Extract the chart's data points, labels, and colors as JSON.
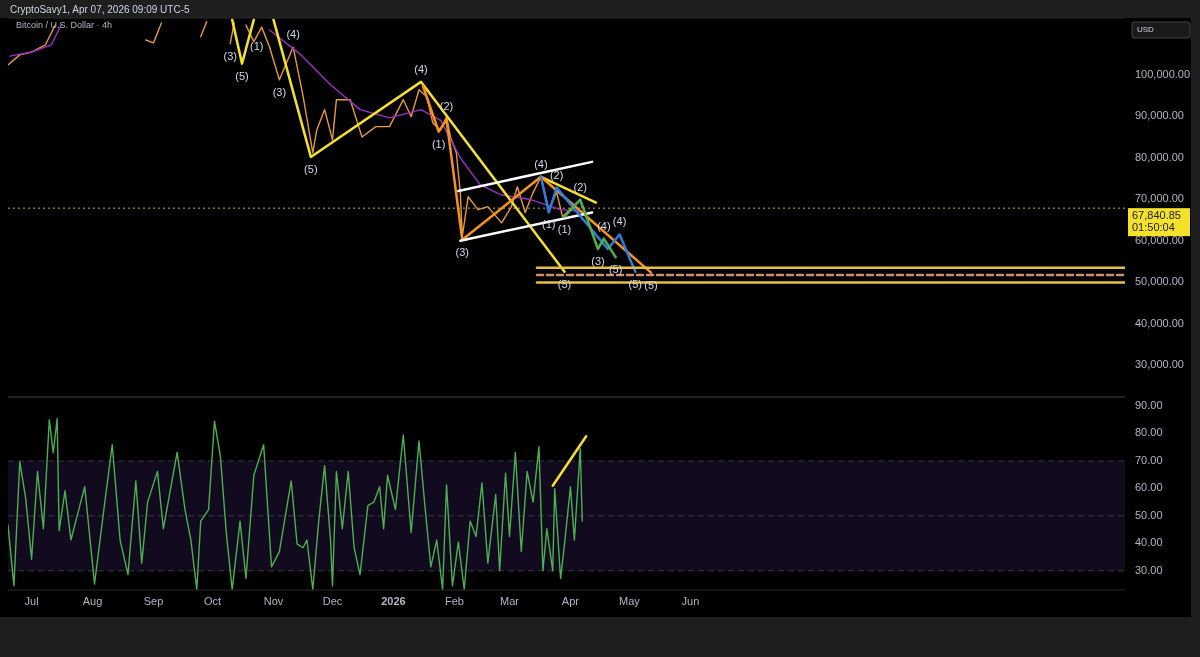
{
  "chart_data": [
    {
      "type": "line",
      "title": "Bitcoin / U.S. Dollar · 4h",
      "subtitle": "CryptoSavy1, Apr 07, 2026 09:09 UTC-5",
      "ylabel": "USD",
      "xlim": [
        "2025-06-19",
        "2027-01-08"
      ],
      "ylim": [
        22300,
        113700
      ],
      "tick_labels": "y",
      "yticks": [
        {
          "value": 30000,
          "label": "30,000.00"
        },
        {
          "value": 40000,
          "label": "40,000.00"
        },
        {
          "value": 50000,
          "label": "50,000.00"
        },
        {
          "value": 60000,
          "label": "60,000.00"
        },
        {
          "value": 70000,
          "label": "70,000.00"
        },
        {
          "value": 80000,
          "label": "80,000.00"
        },
        {
          "value": 90000,
          "label": "90,000.00"
        },
        {
          "value": 100000,
          "label": "100,000.00"
        }
      ],
      "ref_lines": [
        {
          "axis": "y",
          "value": 67840.85,
          "label": "67,840.85",
          "color": "#f5e02a",
          "line_style": "dotted"
        }
      ],
      "series": [
        {
          "color": "#e59a3a",
          "x": [
            "2025-06-19",
            "2025-06-25",
            "2025-07-01",
            "2025-07-08",
            "2025-07-13",
            "2025-07-20",
            "2025-08-28",
            "2025-09-01",
            "2025-09-05",
            "2025-09-12",
            "2025-09-25",
            "2025-09-28",
            "2025-10-03",
            "2025-10-10",
            "2025-10-12",
            "2025-10-15",
            "2025-10-18",
            "2025-10-22",
            "2025-10-26",
            "2025-10-30",
            "2025-11-04",
            "2025-11-11",
            "2025-11-16",
            "2025-11-21",
            "2025-11-23",
            "2025-11-27",
            "2025-12-01",
            "2025-12-03",
            "2025-12-10",
            "2025-12-16",
            "2025-12-23",
            "2025-12-30",
            "2026-01-06",
            "2026-01-10",
            "2026-01-14",
            "2026-01-18",
            "2026-01-21",
            "2026-01-25",
            "2026-01-28",
            "2026-01-30",
            "2026-02-02",
            "2026-02-04",
            "2026-02-05",
            "2026-02-08",
            "2026-02-13",
            "2026-02-18",
            "2026-02-25",
            "2026-03-02",
            "2026-03-05",
            "2026-03-09",
            "2026-03-13",
            "2026-03-17",
            "2026-03-21",
            "2026-03-25",
            "2026-03-28",
            "2026-04-02",
            "2026-04-06",
            "2026-04-07"
          ],
          "values": [
            102400,
            104800,
            105500,
            107200,
            112000,
            null,
            108400,
            107700,
            112500,
            null,
            109200,
            112800,
            null,
            107500,
            112500,
            null,
            112000,
            108000,
            111500,
            106700,
            98800,
            106700,
            95000,
            81200,
            86700,
            91600,
            84300,
            94000,
            94000,
            85000,
            87500,
            87500,
            94000,
            89900,
            96400,
            94700,
            88400,
            86700,
            89900,
            85000,
            81200,
            71600,
            61000,
            70600,
            67500,
            68200,
            64300,
            68200,
            73000,
            66800,
            71600,
            75400,
            67500,
            71600,
            65800,
            68200,
            69900,
            67840.85
          ]
        },
        {
          "color": "#9b30c8",
          "x": [
            "2025-06-20",
            "2025-07-01",
            "2025-07-11",
            "2025-07-16",
            "2025-07-20",
            "2025-10-30",
            "2025-11-15",
            "2025-11-30",
            "2025-12-15",
            "2025-12-30",
            "2026-01-15",
            "2026-01-25",
            "2026-02-04",
            "2026-02-14",
            "2026-02-25",
            "2026-03-11",
            "2026-03-27",
            "2026-04-07"
          ],
          "values": [
            104500,
            105500,
            107200,
            112000,
            null,
            110800,
            104800,
            97600,
            91600,
            89600,
            91600,
            89000,
            80000,
            73500,
            71000,
            70000,
            67500,
            67000
          ]
        },
        {
          "color": "#f5e02a",
          "x": [
            "2025-10-11",
            "2025-10-16",
            "2025-10-22",
            "2025-10-27",
            "2025-11-01",
            "2025-11-20",
            "2026-01-15",
            "2026-03-29"
          ],
          "values": [
            113300,
            102700,
            113300,
            null,
            113300,
            80200,
            98300,
            52500
          ]
        },
        {
          "color": "#f5e02a",
          "x": [
            "2026-03-17",
            "2026-04-14"
          ],
          "values": [
            75400,
            69200
          ]
        },
        {
          "color": "#f7931a",
          "x": [
            "2026-01-16",
            "2026-01-24",
            "2026-01-28",
            "2026-02-05",
            "2026-03-17",
            "2026-05-12"
          ],
          "values": [
            97300,
            86300,
            89200,
            60200,
            75400,
            52300
          ]
        },
        {
          "color": "#ffffff",
          "x": [
            "2026-02-03",
            "2026-04-12"
          ],
          "values": [
            72000,
            79000
          ]
        },
        {
          "color": "#ffffff",
          "x": [
            "2026-02-04",
            "2026-04-12"
          ],
          "values": [
            60000,
            66800
          ]
        },
        {
          "color": "#2f7de1",
          "x": [
            "2026-03-17",
            "2026-03-21",
            "2026-03-25",
            "2026-04-20",
            "2026-04-26",
            "2026-05-04"
          ],
          "values": [
            75400,
            66800,
            72800,
            58000,
            61500,
            52500
          ]
        },
        {
          "color": "#4caf50",
          "x": [
            "2026-03-29",
            "2026-04-06",
            "2026-04-15",
            "2026-04-18",
            "2026-04-24"
          ],
          "values": [
            65800,
            69900,
            58000,
            60500,
            56000
          ]
        },
        {
          "color": "#e8c040",
          "x": [
            "2026-03-15",
            "2027-01-08"
          ],
          "values": [
            53500,
            53500
          ]
        },
        {
          "color": "#e8c040",
          "x": [
            "2026-03-15",
            "2027-01-08"
          ],
          "values": [
            49900,
            49900
          ]
        },
        {
          "color": "#d09070",
          "line_style": "dashed",
          "x": [
            "2026-03-15",
            "2027-01-08"
          ],
          "values": [
            51700,
            51700
          ]
        }
      ],
      "annotations": [
        "01:50:04",
        {
          "text": "(3)",
          "x": "2025-10-10",
          "y": 107500
        },
        {
          "text": "(5)",
          "x": "2025-10-16",
          "y": 102700
        },
        {
          "text": "(4)",
          "x": "2025-11-11",
          "y": 106700
        },
        {
          "text": "(1)",
          "x": "2025-10-30",
          "y": 106700
        },
        {
          "text": "(3)",
          "x": "2025-11-04",
          "y": 98800
        },
        {
          "text": "(5)",
          "x": "2025-11-20",
          "y": 80200
        },
        {
          "text": "(4)",
          "x": "2026-01-15",
          "y": 98300
        },
        {
          "text": "(2)",
          "x": "2026-01-28",
          "y": 89200
        },
        {
          "text": "(1)",
          "x": "2026-01-24",
          "y": 86300
        },
        {
          "text": "(3)",
          "x": "2026-02-05",
          "y": 60200
        },
        {
          "text": "(4)",
          "x": "2026-03-17",
          "y": 75400
        },
        {
          "text": "(2)",
          "x": "2026-03-25",
          "y": 72800
        },
        {
          "text": "(2)",
          "x": "2026-04-06",
          "y": 69900
        },
        {
          "text": "(1)",
          "x": "2026-03-21",
          "y": 66800
        },
        {
          "text": "(1)",
          "x": "2026-03-29",
          "y": 65800
        },
        {
          "text": "(4)",
          "x": "2026-04-18",
          "y": 60500
        },
        {
          "text": "(4)",
          "x": "2026-04-26",
          "y": 61500
        },
        {
          "text": "(3)",
          "x": "2026-04-15",
          "y": 58000
        },
        {
          "text": "(5)",
          "x": "2026-04-24",
          "y": 56000
        },
        {
          "text": "(5)",
          "x": "2026-03-29",
          "y": 52500
        },
        {
          "text": "(5)",
          "x": "2026-05-04",
          "y": 52500
        },
        {
          "text": "(5)",
          "x": "2026-05-12",
          "y": 52300
        }
      ]
    },
    {
      "type": "line",
      "xlim": [
        "2025-06-19",
        "2027-01-08"
      ],
      "ylim": [
        23,
        93.3
      ],
      "xticks": [
        {
          "value": "2025-07-01",
          "label": "Jul"
        },
        {
          "value": "2025-08-01",
          "label": "Aug"
        },
        {
          "value": "2025-09-01",
          "label": "Sep"
        },
        {
          "value": "2025-10-01",
          "label": "Oct"
        },
        {
          "value": "2025-11-01",
          "label": "Nov"
        },
        {
          "value": "2025-12-01",
          "label": "Dec"
        },
        {
          "value": "2026-01-01",
          "label": "2026"
        },
        {
          "value": "2026-02-01",
          "label": "Feb"
        },
        {
          "value": "2026-03-01",
          "label": "Mar"
        },
        {
          "value": "2026-04-01",
          "label": "Apr"
        },
        {
          "value": "2026-05-01",
          "label": "May"
        },
        {
          "value": "2026-06-01",
          "label": "Jun"
        }
      ],
      "yticks": [
        {
          "value": 30,
          "label": "30.00"
        },
        {
          "value": 40,
          "label": "40.00"
        },
        {
          "value": 50,
          "label": "50.00"
        },
        {
          "value": 60,
          "label": "60.00"
        },
        {
          "value": 70,
          "label": "70.00"
        },
        {
          "value": 80,
          "label": "80.00"
        },
        {
          "value": 90,
          "label": "90.00"
        }
      ],
      "bands": [
        {
          "axis": "y",
          "from": 30,
          "to": 70,
          "color": "#120a1f"
        }
      ],
      "ref_lines": [
        {
          "axis": "y",
          "value": 70,
          "color": "#444444",
          "line_style": "dashed"
        },
        {
          "axis": "y",
          "value": 50,
          "color": "#444444",
          "line_style": "dashed"
        },
        {
          "axis": "y",
          "value": 30,
          "color": "#444444",
          "line_style": "dashed"
        }
      ],
      "series": [
        {
          "color": "#4caf50",
          "x": [
            "2025-06-19",
            "2025-06-22",
            "2025-06-25",
            "2025-06-28",
            "2025-07-01",
            "2025-07-04",
            "2025-07-07",
            "2025-07-10",
            "2025-07-12",
            "2025-07-14",
            "2025-07-15",
            "2025-07-18",
            "2025-07-21",
            "2025-07-25",
            "2025-07-28",
            "2025-08-02",
            "2025-08-07",
            "2025-08-11",
            "2025-08-15",
            "2025-08-19",
            "2025-08-23",
            "2025-08-26",
            "2025-08-29",
            "2025-09-03",
            "2025-09-06",
            "2025-09-13",
            "2025-09-17",
            "2025-09-20",
            "2025-09-23",
            "2025-09-25",
            "2025-09-29",
            "2025-10-02",
            "2025-10-05",
            "2025-10-08",
            "2025-10-11",
            "2025-10-15",
            "2025-10-18",
            "2025-10-22",
            "2025-10-27",
            "2025-10-31",
            "2025-11-04",
            "2025-11-10",
            "2025-11-13",
            "2025-11-16",
            "2025-11-18",
            "2025-11-21",
            "2025-11-24",
            "2025-11-27",
            "2025-11-30",
            "2025-12-01",
            "2025-12-03",
            "2025-12-06",
            "2025-12-09",
            "2025-12-12",
            "2025-12-15",
            "2025-12-19",
            "2025-12-22",
            "2025-12-25",
            "2025-12-27",
            "2025-12-29",
            "2026-01-02",
            "2026-01-06",
            "2026-01-10",
            "2026-01-14",
            "2026-01-17",
            "2026-01-20",
            "2026-01-23",
            "2026-01-26",
            "2026-01-28",
            "2026-01-31",
            "2026-02-03",
            "2026-02-06",
            "2026-02-09",
            "2026-02-12",
            "2026-02-15",
            "2026-02-18",
            "2026-02-22",
            "2026-02-24",
            "2026-02-27",
            "2026-03-01",
            "2026-03-04",
            "2026-03-07",
            "2026-03-10",
            "2026-03-13",
            "2026-03-16",
            "2026-03-18",
            "2026-03-20",
            "2026-03-23",
            "2026-03-24",
            "2026-03-27",
            "2026-03-29",
            "2026-04-01",
            "2026-04-03",
            "2026-04-04",
            "2026-04-06",
            "2026-04-07"
          ],
          "values": [
            46.7,
            24.5,
            69.7,
            56.4,
            34.2,
            66.2,
            45.3,
            85,
            73,
            85.4,
            44.6,
            59.2,
            41.2,
            52.3,
            60.6,
            25.2,
            53.7,
            75.9,
            41.2,
            28.6,
            62.7,
            32.8,
            55,
            66.2,
            45.3,
            73.1,
            52.3,
            41.2,
            23.2,
            48.1,
            52.3,
            84.5,
            71.7,
            43.9,
            23.2,
            48.1,
            27.2,
            64.8,
            75.9,
            31.4,
            37,
            62.7,
            39.8,
            38.4,
            41.2,
            23.2,
            48.1,
            68.3,
            41.2,
            24.5,
            66.2,
            45.3,
            66.2,
            38.4,
            28.6,
            53.7,
            55,
            60.6,
            45.3,
            64.8,
            52.3,
            79.4,
            43.9,
            77.3,
            53.7,
            31.4,
            41.2,
            23.2,
            61.3,
            24.5,
            40.5,
            23.2,
            48.1,
            42.5,
            62,
            32.8,
            57.8,
            30,
            65.5,
            42.5,
            73.1,
            37,
            66.2,
            55,
            75.2,
            30,
            45.3,
            30,
            59.9,
            27.2,
            39.8,
            60.6,
            41.2,
            52.3,
            74.5,
            48.1
          ]
        },
        {
          "color": "#f5e02a",
          "x": [
            "2026-03-23",
            "2026-04-09"
          ],
          "values": [
            61,
            79
          ]
        }
      ]
    }
  ]
}
